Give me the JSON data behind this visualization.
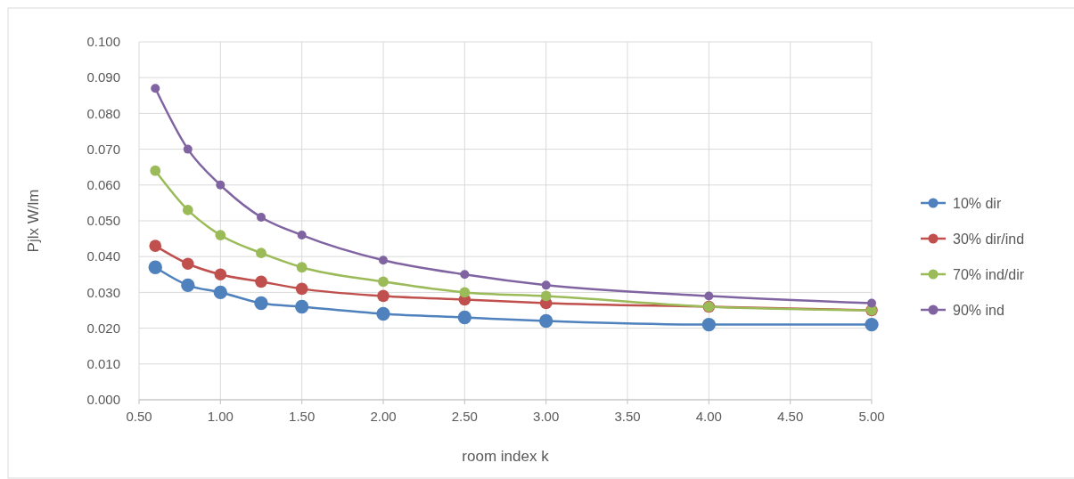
{
  "chart_data": {
    "type": "line",
    "xlabel": "room index k",
    "ylabel": "Pjlx W/lm",
    "x": [
      0.6,
      0.8,
      1.0,
      1.25,
      1.5,
      2.0,
      2.5,
      3.0,
      4.0,
      5.0
    ],
    "series": [
      {
        "name": "10% dir",
        "color": "#4f81bd",
        "values": [
          0.037,
          0.032,
          0.03,
          0.027,
          0.026,
          0.024,
          0.023,
          0.022,
          0.021,
          0.021
        ]
      },
      {
        "name": "30% dir/ind",
        "color": "#c0504d",
        "values": [
          0.043,
          0.038,
          0.035,
          0.033,
          0.031,
          0.029,
          0.028,
          0.027,
          0.026,
          0.025
        ]
      },
      {
        "name": "70% ind/dir",
        "color": "#9bbb59",
        "values": [
          0.064,
          0.053,
          0.046,
          0.041,
          0.037,
          0.033,
          0.03,
          0.029,
          0.026,
          0.025
        ]
      },
      {
        "name": "90% ind",
        "color": "#8064a2",
        "values": [
          0.087,
          0.07,
          0.06,
          0.051,
          0.046,
          0.039,
          0.035,
          0.032,
          0.029,
          0.027
        ]
      }
    ],
    "xlim": [
      0.5,
      5.0
    ],
    "xticks": [
      {
        "value": 0.5,
        "label": "0.50"
      },
      {
        "value": 1.0,
        "label": "1.00"
      },
      {
        "value": 1.5,
        "label": "1.50"
      },
      {
        "value": 2.0,
        "label": "2.00"
      },
      {
        "value": 2.5,
        "label": "2.50"
      },
      {
        "value": 3.0,
        "label": "3.00"
      },
      {
        "value": 3.5,
        "label": "3.50"
      },
      {
        "value": 4.0,
        "label": "4.00"
      },
      {
        "value": 4.5,
        "label": "4.50"
      },
      {
        "value": 5.0,
        "label": "5.00"
      }
    ],
    "ylim": [
      0,
      0.1
    ],
    "yticks": [
      {
        "value": 0,
        "label": "0.000"
      },
      {
        "value": 0.01,
        "label": "0.010"
      },
      {
        "value": 0.02,
        "label": "0.020"
      },
      {
        "value": 0.03,
        "label": "0.030"
      },
      {
        "value": 0.04,
        "label": "0.040"
      },
      {
        "value": 0.05,
        "label": "0.050"
      },
      {
        "value": 0.06,
        "label": "0.060"
      },
      {
        "value": 0.07,
        "label": "0.070"
      },
      {
        "value": 0.08,
        "label": "0.080"
      },
      {
        "value": 0.09,
        "label": "0.090"
      },
      {
        "value": 0.1,
        "label": "0.100"
      }
    ],
    "grid": true,
    "legend": "right",
    "marker": "circle",
    "line_style": "solid"
  }
}
